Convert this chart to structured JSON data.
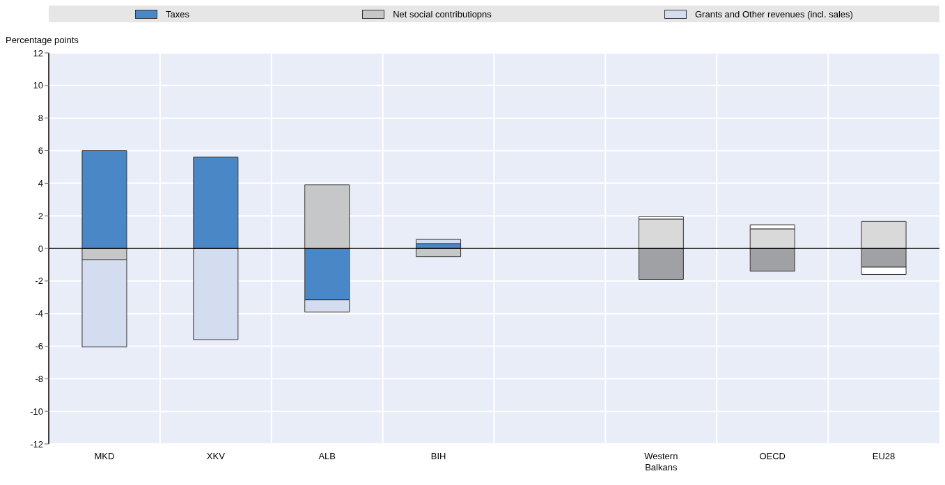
{
  "chart_data": {
    "type": "bar",
    "stacked": true,
    "ylabel": "Percentage points",
    "categories": [
      "MKD",
      "XKV",
      "ALB",
      "BIH",
      null,
      "Western Balkans",
      "OECD",
      "EU28"
    ],
    "series": [
      {
        "name": "Taxes",
        "color": "#4a87c6",
        "colors": [
          "#4a87c6",
          "#4a87c6",
          "#4a87c6",
          "#4a87c6",
          "#4a87c6",
          "#d9d9d9",
          "#d9d9d9",
          "#d9d9d9"
        ],
        "values": [
          6.0,
          5.6,
          -3.15,
          0.3,
          null,
          1.8,
          1.2,
          1.65
        ]
      },
      {
        "name": "Net social contributiopns",
        "color": "#c6c7c9",
        "colors": [
          "#c6c7c9",
          "#c6c7c9",
          "#c6c7c9",
          "#c6c7c9",
          "#c6c7c9",
          "#a0a1a4",
          "#a0a1a4",
          "#a0a1a4"
        ],
        "values": [
          -0.7,
          null,
          3.9,
          -0.5,
          null,
          -1.9,
          -1.4,
          -1.15
        ]
      },
      {
        "name": "Grants and Other revenues (incl. sales)",
        "color": "#d4ddef",
        "colors": [
          "#d4ddef",
          "#d4ddef",
          "#d4ddef",
          "#d4ddef",
          "#d4ddef",
          "#ffffff",
          "#ffffff",
          "#ffffff"
        ],
        "values": [
          -5.35,
          -5.6,
          -0.75,
          0.25,
          null,
          0.15,
          0.25,
          -0.45
        ]
      }
    ],
    "ylim": [
      -12,
      12
    ],
    "yticks": [
      -12,
      -10,
      -8,
      -6,
      -4,
      -2,
      0,
      2,
      4,
      6,
      8,
      10,
      12
    ],
    "grid": true,
    "legend": "top"
  }
}
